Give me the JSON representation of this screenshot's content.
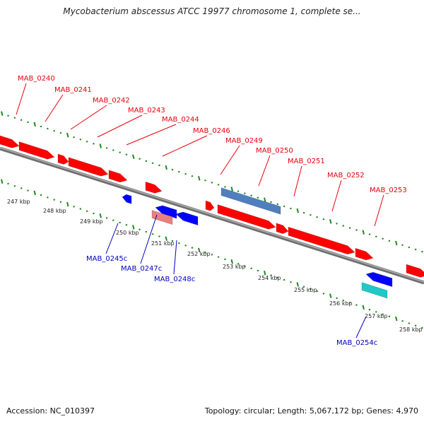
{
  "title": "Mycobacterium abscessus ATCC 19977 chromosome 1, complete se...",
  "footer": {
    "accession": "Accession: NC_010397",
    "summary": "Topology: circular; Length: 5,067,172 bp; Genes: 4,970"
  },
  "colors": {
    "forward_gene": "#ff0000",
    "reverse_gene": "#0000ff",
    "backbone": "#8a8a8a",
    "tick": "#1a8a1a",
    "forward_label": "#e8000b",
    "reverse_label": "#0000c0"
  },
  "ruler": [
    "247 kbp",
    "248 kbp",
    "249 kbp",
    "250 kbp",
    "251 kbp",
    "252 kbp",
    "253 kbp",
    "254 kbp",
    "255 kbp",
    "256 kbp",
    "257 kbp",
    "258 kbp"
  ],
  "forward_genes": [
    "MAB_0240",
    "MAB_0241",
    "MAB_0242",
    "MAB_0243",
    "MAB_0244",
    "MAB_0246",
    "MAB_0249",
    "MAB_0250",
    "MAB_0251",
    "MAB_0252",
    "MAB_0253"
  ],
  "reverse_genes": [
    "MAB_0245c",
    "MAB_0247c",
    "MAB_0248c",
    "MAB_0254c"
  ]
}
